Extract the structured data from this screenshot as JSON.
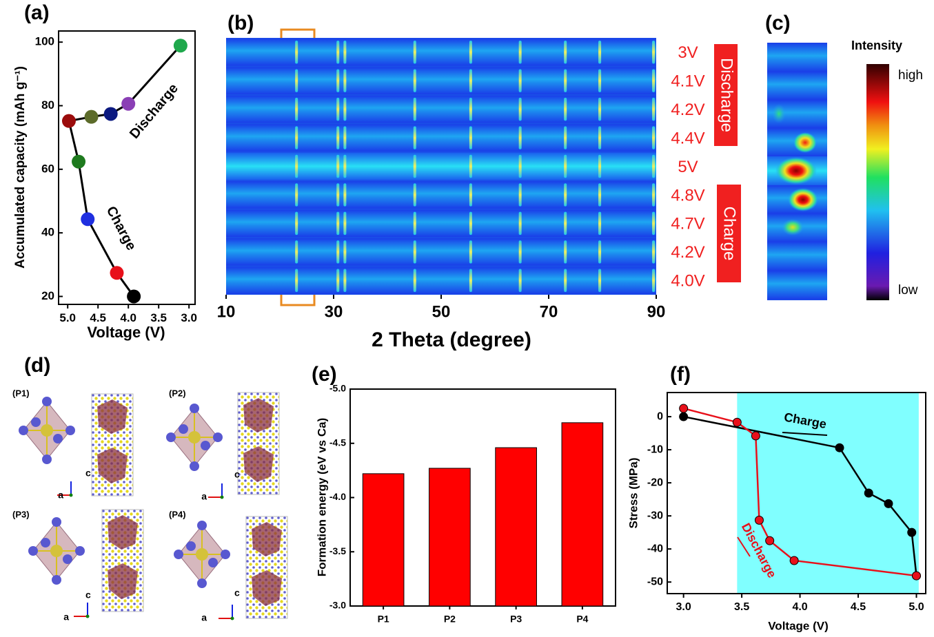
{
  "chart_data": [
    {
      "type": "line",
      "panel": "(a)",
      "xlabel": "Voltage (V)",
      "ylabel": "Accumulated capacity (mAh g⁻¹)",
      "x": [
        3.91,
        4.19,
        4.67,
        4.82,
        4.98,
        4.61,
        4.29,
        4.0,
        3.14
      ],
      "series": [
        {
          "values": [
            20,
            27.4,
            44.3,
            62.4,
            75.2,
            76.5,
            77.4,
            80.6,
            98.9
          ],
          "color": "#000000",
          "point_colors": [
            "#000000",
            "#e8101a",
            "#1f2fe0",
            "#1e7a1e",
            "#9b0c0c",
            "#5c6b2a",
            "#0c1a80",
            "#8a3fb5",
            "#1fa84c"
          ]
        }
      ],
      "xlim": [
        5.15,
        2.9
      ],
      "xticks": [
        {
          "value": 5,
          "label": "5.0"
        },
        4.5,
        {
          "value": 4,
          "label": "4.0"
        },
        3.5,
        {
          "value": 3,
          "label": "3.0"
        }
      ],
      "ylim": [
        17.5,
        103.5
      ],
      "yticks": [
        20,
        40,
        60,
        80,
        100
      ],
      "annotations": [
        "Charge",
        "Discharge"
      ]
    },
    {
      "type": "heatmap",
      "panel": "(b)",
      "xlabel": "2 Theta (degree)",
      "xlim": [
        10,
        90
      ],
      "xticks": [
        10,
        30,
        50,
        70,
        90
      ],
      "rows": [
        "3V",
        "4.1V",
        "4.2V",
        "4.4V",
        "5V",
        "4.8V",
        "4.7V",
        "4.2V",
        "4.0V"
      ],
      "peaks": [
        23.1,
        30.8,
        32.1,
        45.1,
        55.5,
        64.7,
        73.1,
        79.5,
        89.5
      ],
      "groups": [
        "Discharge",
        "Charge"
      ]
    },
    {
      "type": "colorbar",
      "panel": "(c)",
      "title": "Intensity",
      "labels": [
        "high",
        "low"
      ]
    },
    {
      "type": "bar",
      "panel": "(e)",
      "ylabel": "Formation energy (eV vs Ca)",
      "categories": [
        "P1",
        "P2",
        "P3",
        "P4"
      ],
      "values": [
        -4.22,
        -4.27,
        -4.46,
        -4.69
      ],
      "color": "#ff0000",
      "ylim": [
        -3.0,
        -5.0
      ],
      "yticks": [
        {
          "value": -5,
          "label": "-5.0"
        },
        {
          "value": -4.5,
          "label": "-4.5"
        },
        {
          "value": -4,
          "label": "-4.0"
        },
        {
          "value": -3.5,
          "label": "-3.5"
        },
        {
          "value": -3,
          "label": "-3.0"
        }
      ]
    },
    {
      "type": "line",
      "panel": "(f)",
      "xlabel": "Voltage (V)",
      "ylabel": "Stress (MPa)",
      "series": [
        {
          "name": "Charge",
          "x": [
            3.0,
            4.34,
            4.59,
            4.76,
            4.96,
            5.0
          ],
          "values": [
            0,
            -9.4,
            -23.1,
            -26.3,
            -35,
            -48.1
          ],
          "color": "#000000"
        },
        {
          "name": "Discharge",
          "x": [
            3.0,
            3.46,
            3.62,
            3.65,
            3.74,
            3.95,
            5.0
          ],
          "values": [
            2.5,
            -1.7,
            -5.8,
            -31.3,
            -37.5,
            -43.5,
            -48.1
          ],
          "color": "#e8101a"
        }
      ],
      "xlim": [
        2.86,
        5.08
      ],
      "xticks": [
        {
          "value": 3,
          "label": "3.0"
        },
        3.5,
        {
          "value": 4,
          "label": "4.0"
        },
        4.5,
        {
          "value": 5,
          "label": "5.0"
        }
      ],
      "ylim": [
        -53.5,
        7.3
      ],
      "yticks": [
        0,
        -10,
        -20,
        -30,
        -40,
        -50
      ],
      "shaded_region": [
        3.46,
        5.02
      ],
      "shade_color": "#80ffff"
    }
  ],
  "structures": {
    "panel": "(d)",
    "models": [
      "(P1)",
      "(P2)",
      "(P3)",
      "(P4)"
    ],
    "axis_labels": [
      "c",
      "a"
    ]
  }
}
